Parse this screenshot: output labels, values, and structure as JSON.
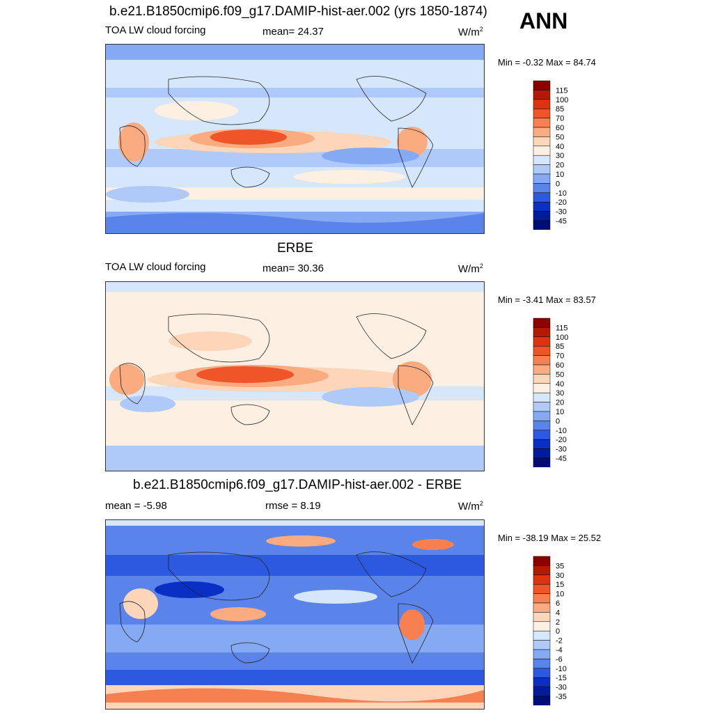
{
  "header": {
    "season": "ANN"
  },
  "panels": [
    {
      "title": "b.e21.B1850cmip6.f09_g17.DAMIP-hist-aer.002 (yrs 1850-1874)",
      "left_label": "TOA LW cloud forcing",
      "center_label": "mean=  24.37",
      "units_base": "W/m",
      "units_exp": "2",
      "minmax": "Min =  -0.32 Max =  84.74"
    },
    {
      "title": "ERBE",
      "left_label": "TOA LW cloud forcing",
      "center_label": "mean=  30.36",
      "units_base": "W/m",
      "units_exp": "2",
      "minmax": "Min =  -3.41 Max =  83.57"
    },
    {
      "title": "b.e21.B1850cmip6.f09_g17.DAMIP-hist-aer.002 - ERBE",
      "left_label": "mean =  -5.98",
      "center_label": "rmse =   8.19",
      "units_base": "W/m",
      "units_exp": "2",
      "minmax": "Min = -38.19 Max =  25.52"
    }
  ],
  "chart_data": [
    {
      "type": "heatmap",
      "title": "b.e21.B1850cmip6.f09_g17.DAMIP-hist-aer.002 (yrs 1850-1874)",
      "variable": "TOA LW cloud forcing",
      "units": "W/m2",
      "mean": 24.37,
      "min": -0.32,
      "max": 84.74,
      "colorbar_levels": [
        "115",
        "100",
        "85",
        "70",
        "60",
        "50",
        "40",
        "30",
        "20",
        "10",
        "0",
        "-10",
        "-20",
        "-30",
        "-45"
      ],
      "colorbar_colors": [
        "#8c0000",
        "#b51a00",
        "#dd3310",
        "#f0552a",
        "#f6804f",
        "#fbab80",
        "#fdd5b8",
        "#fdf0e2",
        "#d6e6fb",
        "#afcaf8",
        "#85a9f2",
        "#5a84ea",
        "#2c59df",
        "#0a2fc4",
        "#001c9a",
        "#000d78"
      ]
    },
    {
      "type": "heatmap",
      "title": "ERBE",
      "variable": "TOA LW cloud forcing",
      "units": "W/m2",
      "mean": 30.36,
      "min": -3.41,
      "max": 83.57,
      "colorbar_levels": [
        "115",
        "100",
        "85",
        "70",
        "60",
        "50",
        "40",
        "30",
        "20",
        "10",
        "0",
        "-10",
        "-20",
        "-30",
        "-45"
      ],
      "colorbar_colors": [
        "#8c0000",
        "#b51a00",
        "#dd3310",
        "#f0552a",
        "#f6804f",
        "#fbab80",
        "#fdd5b8",
        "#fdf0e2",
        "#d6e6fb",
        "#afcaf8",
        "#85a9f2",
        "#5a84ea",
        "#2c59df",
        "#0a2fc4",
        "#001c9a",
        "#000d78"
      ]
    },
    {
      "type": "heatmap",
      "title": "b.e21.B1850cmip6.f09_g17.DAMIP-hist-aer.002 - ERBE",
      "units": "W/m2",
      "mean": -5.98,
      "rmse": 8.19,
      "min": -38.19,
      "max": 25.52,
      "colorbar_levels": [
        "35",
        "30",
        "15",
        "10",
        "6",
        "4",
        "2",
        "0",
        "-2",
        "-4",
        "-6",
        "-10",
        "-15",
        "-30",
        "-35"
      ],
      "colorbar_colors": [
        "#8c0000",
        "#b51a00",
        "#dd3310",
        "#f0552a",
        "#f6804f",
        "#fbab80",
        "#fdd5b8",
        "#fdf0e2",
        "#d6e6fb",
        "#afcaf8",
        "#85a9f2",
        "#5a84ea",
        "#2c59df",
        "#0a2fc4",
        "#001c9a",
        "#000d78"
      ]
    }
  ]
}
